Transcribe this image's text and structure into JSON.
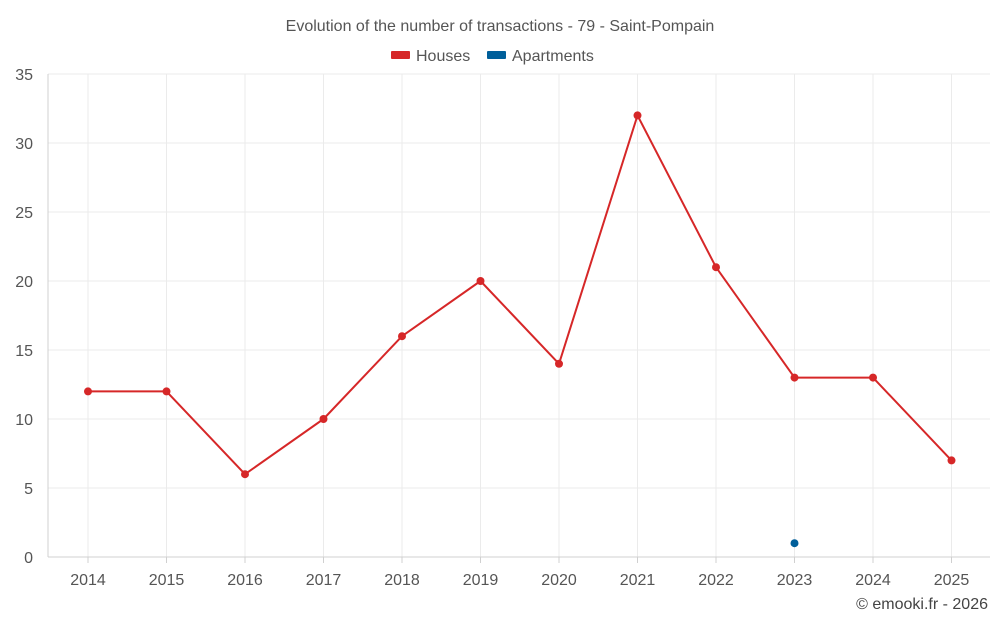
{
  "chart_data": {
    "type": "line",
    "title": "Evolution of the number of transactions - 79 - Saint-Pompain",
    "categories": [
      "2014",
      "2015",
      "2016",
      "2017",
      "2018",
      "2019",
      "2020",
      "2021",
      "2022",
      "2023",
      "2024",
      "2025"
    ],
    "series": [
      {
        "name": "Houses",
        "color": "#d62728",
        "values": [
          12,
          12,
          6,
          10,
          16,
          20,
          14,
          32,
          21,
          13,
          13,
          7
        ]
      },
      {
        "name": "Apartments",
        "color": "#005f9a",
        "values": [
          null,
          null,
          null,
          null,
          null,
          null,
          null,
          null,
          null,
          1,
          null,
          null
        ]
      }
    ],
    "ylim": [
      0,
      35
    ],
    "yticks": [
      0,
      5,
      10,
      15,
      20,
      25,
      30,
      35
    ],
    "grid": true,
    "legend": "top-center",
    "xlabel": "",
    "ylabel": ""
  },
  "credit": "© emooki.fr - 2026"
}
